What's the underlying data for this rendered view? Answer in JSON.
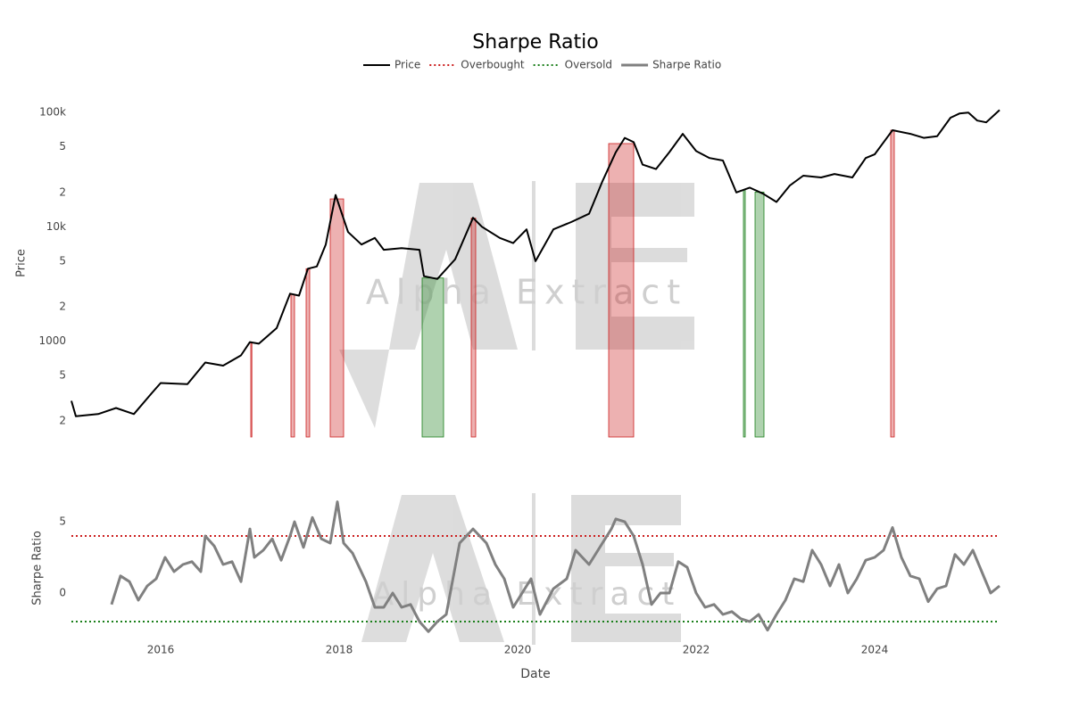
{
  "chart_data": [
    {
      "type": "line",
      "title": "Sharpe Ratio",
      "y_label": "Price",
      "watermark": "Alpha Extract",
      "ylog": true,
      "ylim": [
        145,
        160000
      ],
      "yticks": [
        {
          "value": 100000,
          "label": "100k"
        },
        {
          "value": 50000,
          "label": "5"
        },
        {
          "value": 20000,
          "label": "2"
        },
        {
          "value": 10000,
          "label": "10k"
        },
        {
          "value": 5000,
          "label": "5"
        },
        {
          "value": 2000,
          "label": "2"
        },
        1000,
        {
          "value": 500,
          "label": "5"
        },
        {
          "value": 200,
          "label": "2"
        }
      ],
      "xlim": [
        2015.0,
        2025.4
      ],
      "x": [
        2015.0,
        2015.05,
        2015.3,
        2015.5,
        2015.7,
        2015.9,
        2016.0,
        2016.3,
        2016.5,
        2016.7,
        2016.9,
        2017.0,
        2017.1,
        2017.3,
        2017.45,
        2017.55,
        2017.65,
        2017.75,
        2017.85,
        2017.96,
        2018.1,
        2018.25,
        2018.4,
        2018.5,
        2018.7,
        2018.9,
        2018.95,
        2019.1,
        2019.3,
        2019.5,
        2019.6,
        2019.8,
        2019.95,
        2020.1,
        2020.2,
        2020.4,
        2020.6,
        2020.8,
        2020.95,
        2021.1,
        2021.2,
        2021.3,
        2021.4,
        2021.55,
        2021.7,
        2021.85,
        2022.0,
        2022.15,
        2022.3,
        2022.45,
        2022.6,
        2022.75,
        2022.9,
        2023.05,
        2023.2,
        2023.4,
        2023.55,
        2023.75,
        2023.9,
        2024.0,
        2024.15,
        2024.2,
        2024.4,
        2024.55,
        2024.7,
        2024.85,
        2024.95,
        2025.05,
        2025.15,
        2025.25,
        2025.4
      ],
      "series": [
        {
          "name": "Price",
          "color": "#000000",
          "values": [
            300,
            220,
            230,
            260,
            230,
            350,
            430,
            420,
            650,
            610,
            750,
            980,
            950,
            1300,
            2600,
            2500,
            4300,
            4500,
            7000,
            19000,
            9000,
            7000,
            8000,
            6300,
            6500,
            6300,
            3700,
            3500,
            5200,
            12000,
            10000,
            8000,
            7200,
            9500,
            5000,
            9500,
            11000,
            13000,
            25000,
            45000,
            60000,
            55000,
            35000,
            32000,
            45000,
            65000,
            46000,
            40000,
            38000,
            20000,
            22000,
            19500,
            16500,
            23000,
            28000,
            27000,
            29000,
            27000,
            40000,
            43000,
            62000,
            70000,
            65000,
            60000,
            62000,
            90000,
            98000,
            100000,
            85000,
            82000,
            105000
          ]
        }
      ],
      "overbought_periods": [
        [
          2017.01,
          2017.02
        ],
        [
          2017.46,
          2017.5
        ],
        [
          2017.63,
          2017.67
        ],
        [
          2017.9,
          2018.05
        ],
        [
          2019.48,
          2019.53
        ],
        [
          2021.02,
          2021.3
        ],
        [
          2024.18,
          2024.22
        ]
      ],
      "oversold_periods": [
        [
          2018.93,
          2019.17
        ],
        [
          2022.53,
          2022.55
        ],
        [
          2022.66,
          2022.76
        ]
      ]
    },
    {
      "type": "line",
      "y_label": "Sharpe Ratio",
      "x_label": "Date",
      "ylim": [
        -3.44,
        6.88
      ],
      "yticks": [
        0,
        5
      ],
      "xlim": [
        2015.0,
        2025.4
      ],
      "xticks": [
        2016,
        2018,
        2020,
        2022,
        2024
      ],
      "hlines": [
        {
          "name": "Overbought",
          "color": "#cc1f1f",
          "value": 4
        },
        {
          "name": "Oversold",
          "color": "#1a7f1a",
          "value": -2
        }
      ],
      "x": [
        2015.45,
        2015.55,
        2015.65,
        2015.75,
        2015.85,
        2015.95,
        2016.05,
        2016.15,
        2016.25,
        2016.35,
        2016.45,
        2016.5,
        2016.6,
        2016.7,
        2016.8,
        2016.9,
        2017.0,
        2017.05,
        2017.15,
        2017.25,
        2017.35,
        2017.45,
        2017.5,
        2017.6,
        2017.7,
        2017.8,
        2017.9,
        2017.98,
        2018.05,
        2018.15,
        2018.3,
        2018.4,
        2018.5,
        2018.6,
        2018.7,
        2018.8,
        2018.9,
        2019.0,
        2019.1,
        2019.2,
        2019.35,
        2019.5,
        2019.65,
        2019.75,
        2019.85,
        2019.95,
        2020.05,
        2020.15,
        2020.25,
        2020.4,
        2020.55,
        2020.65,
        2020.8,
        2020.95,
        2021.05,
        2021.1,
        2021.2,
        2021.3,
        2021.4,
        2021.5,
        2021.6,
        2021.7,
        2021.8,
        2021.9,
        2022.0,
        2022.1,
        2022.2,
        2022.3,
        2022.4,
        2022.5,
        2022.6,
        2022.7,
        2022.8,
        2022.9,
        2023.0,
        2023.1,
        2023.2,
        2023.3,
        2023.4,
        2023.5,
        2023.6,
        2023.7,
        2023.8,
        2023.9,
        2024.0,
        2024.1,
        2024.2,
        2024.3,
        2024.4,
        2024.5,
        2024.6,
        2024.7,
        2024.8,
        2024.9,
        2025.0,
        2025.1,
        2025.2,
        2025.3,
        2025.4
      ],
      "series": [
        {
          "name": "Sharpe Ratio",
          "color": "#808080",
          "values": [
            -0.8,
            1.2,
            0.8,
            -0.5,
            0.5,
            1,
            2.5,
            1.5,
            2,
            2.2,
            1.5,
            4,
            3.3,
            2,
            2.2,
            0.8,
            4.5,
            2.5,
            3,
            3.8,
            2.3,
            4,
            5,
            3.2,
            5.3,
            3.8,
            3.5,
            6.4,
            3.5,
            2.8,
            0.8,
            -1,
            -1,
            0,
            -1,
            -0.8,
            -2,
            -2.7,
            -2,
            -1.5,
            3.5,
            4.5,
            3.5,
            2,
            1,
            -1,
            0,
            1,
            -1.5,
            0.3,
            1,
            3,
            2,
            3.5,
            4.5,
            5.2,
            5,
            4,
            2,
            -0.8,
            0,
            0,
            2.2,
            1.8,
            0,
            -1,
            -0.8,
            -1.5,
            -1.3,
            -1.8,
            -2,
            -1.5,
            -2.6,
            -1.5,
            -0.5,
            1,
            0.8,
            3,
            2,
            0.5,
            2,
            0,
            1,
            2.3,
            2.5,
            3,
            4.6,
            2.5,
            1.2,
            1,
            -0.6,
            0.3,
            0.5,
            2.7,
            2,
            3,
            1.5,
            0,
            0.5
          ]
        }
      ]
    }
  ]
}
